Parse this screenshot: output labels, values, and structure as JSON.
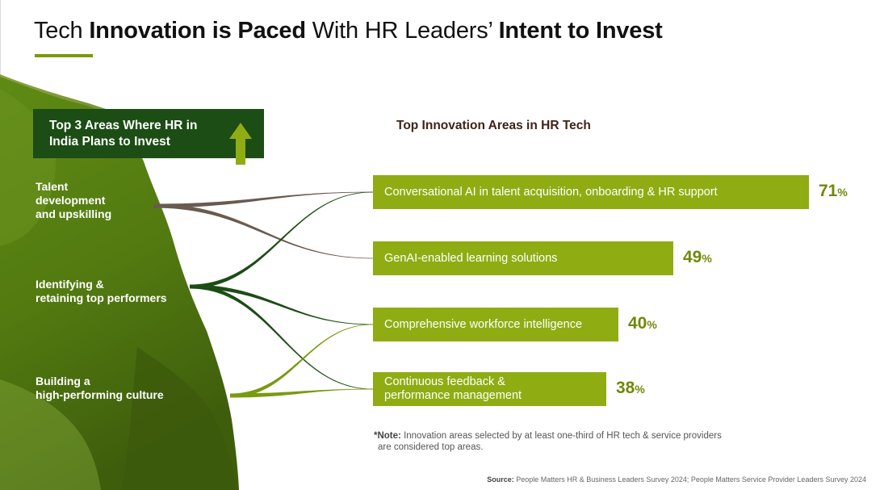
{
  "title": {
    "part1": "Tech ",
    "part2": "Innovation is Paced",
    "part3": " With HR Leaders’ ",
    "part4": "Intent to Invest"
  },
  "callout": {
    "line1": "Top 3 Areas Where HR in",
    "line2": "India Plans to Invest",
    "icon": "up-arrow-icon"
  },
  "left_items": [
    {
      "lines": [
        "Talent",
        "development",
        "and upskilling"
      ]
    },
    {
      "lines": [
        "Identifying &",
        "retaining top performers"
      ]
    },
    {
      "lines": [
        "Building a",
        "high-performing culture"
      ]
    }
  ],
  "chart_data": {
    "type": "bar",
    "orientation": "horizontal",
    "title": "Top Innovation Areas in HR Tech",
    "categories": [
      "Conversational AI in talent acquisition, onboarding & HR support",
      "GenAI-enabled learning solutions",
      "Comprehensive workforce intelligence",
      "Continuous feedback & performance management"
    ],
    "category_lines": [
      [
        "Conversational AI in talent acquisition, onboarding & HR support"
      ],
      [
        "GenAI-enabled learning solutions"
      ],
      [
        "Comprehensive workforce intelligence"
      ],
      [
        "Continuous feedback &",
        "performance management"
      ]
    ],
    "values": [
      71,
      49,
      40,
      38
    ],
    "value_unit": "%",
    "value_labels": [
      "71",
      "49",
      "40",
      "38"
    ],
    "bar_color": "#8fad13",
    "value_color": "#6e8a07",
    "links": [
      {
        "from": 0,
        "to": 0,
        "color": "#6b5a4f"
      },
      {
        "from": 0,
        "to": 1,
        "color": "#6b5a4f"
      },
      {
        "from": 1,
        "to": 0,
        "color": "#1b4d14"
      },
      {
        "from": 1,
        "to": 2,
        "color": "#1b4d14"
      },
      {
        "from": 1,
        "to": 3,
        "color": "#1b4d14"
      },
      {
        "from": 2,
        "to": 2,
        "color": "#7a9a0f"
      },
      {
        "from": 2,
        "to": 3,
        "color": "#7a9a0f"
      }
    ]
  },
  "note": {
    "label": "*Note:",
    "line1": " Innovation areas selected by at least one-third of HR tech & service providers",
    "line2": "are considered top areas."
  },
  "source": {
    "label": "Source:",
    "text": " People Matters HR & Business Leaders Survey 2024; People Matters Service Provider Leaders Survey 2024"
  },
  "colors": {
    "dark_green": "#1b4d14",
    "olive": "#6e8a07",
    "lime": "#8fad13",
    "brown": "#3d2418"
  }
}
